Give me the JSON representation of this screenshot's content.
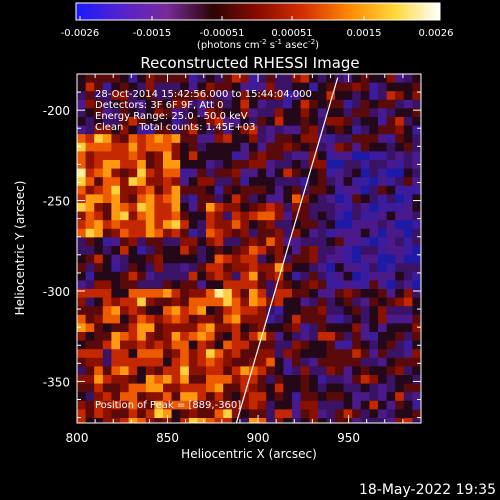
{
  "colorbar": {
    "tick_labels": [
      "-0.0026",
      "-0.0015",
      "-0.00051",
      "0.00051",
      "0.0015",
      "0.0026"
    ],
    "unit_prefix": "(photons cm",
    "unit_exp1": "-2",
    "unit_mid1": " s",
    "unit_exp2": "-1",
    "unit_mid2": " asec",
    "unit_exp3": "-2",
    "unit_suffix": ")",
    "stops": [
      "#1a1aff",
      "#5522cc",
      "#7a2a9a",
      "#2a0505",
      "#8a0a00",
      "#d43000",
      "#ff8800",
      "#ffd838",
      "#ffffff"
    ]
  },
  "title": "Reconstructed RHESSI Image",
  "info": {
    "time_range": "28-Oct-2014 15:42:56.000 to 15:44:04.000",
    "detectors": "Detectors: 3F 6F 9F, Att 0",
    "energy": "Energy Range: 25.0 - 50.0 keV",
    "clean": "Clean     Total counts: 1.45E+03"
  },
  "peak_label": "Position of Peak = [889,-360]",
  "x_axis": {
    "label": "Heliocentric X (arcsec)",
    "ticks": [
      "800",
      "850",
      "900",
      "950"
    ],
    "tick_values": [
      800,
      850,
      900,
      950
    ],
    "range": [
      800,
      990
    ]
  },
  "y_axis": {
    "label": "Heliocentric Y (arcsec)",
    "ticks": [
      "-200",
      "-250",
      "-300",
      "-350"
    ],
    "tick_values": [
      -200,
      -250,
      -300,
      -350
    ],
    "range": [
      -373,
      -180
    ]
  },
  "limb_line": {
    "x1": 888,
    "y1": -373,
    "x2": 944,
    "y2": -182
  },
  "timestamp": "18-May-2022 19:35"
}
